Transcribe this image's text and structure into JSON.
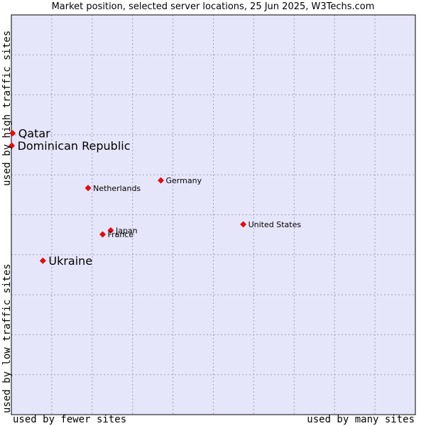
{
  "chart_data": {
    "type": "scatter",
    "title": "Market position, selected server locations, 25 Jun 2025, W3Techs.com",
    "xlabel_left": "used by fewer sites",
    "xlabel_right": "used by many sites",
    "ylabel_top": "used by high traffic sites",
    "ylabel_bottom": "used by low traffic sites",
    "xlim": [
      0,
      100
    ],
    "ylim": [
      0,
      100
    ],
    "grid": true,
    "points": [
      {
        "label": "Qatar",
        "x": 0.3,
        "y": 70.4,
        "highlight": true
      },
      {
        "label": "Dominican Republic",
        "x": 0.1,
        "y": 67.3,
        "highlight": true
      },
      {
        "label": "Germany",
        "x": 37.0,
        "y": 58.6,
        "highlight": false
      },
      {
        "label": "Netherlands",
        "x": 19.0,
        "y": 56.7,
        "highlight": false
      },
      {
        "label": "United States",
        "x": 57.4,
        "y": 47.6,
        "highlight": false
      },
      {
        "label": "Japan",
        "x": 24.6,
        "y": 46.1,
        "highlight": false
      },
      {
        "label": "France",
        "x": 22.6,
        "y": 45.1,
        "highlight": false
      },
      {
        "label": "Ukraine",
        "x": 7.8,
        "y": 38.5,
        "highlight": true
      }
    ]
  },
  "colors": {
    "plot_bg": "#e6e6fa",
    "grid": "#a0a0b4",
    "border": "#000000",
    "marker": "#ff0000",
    "marker_edge": "#b00000"
  }
}
